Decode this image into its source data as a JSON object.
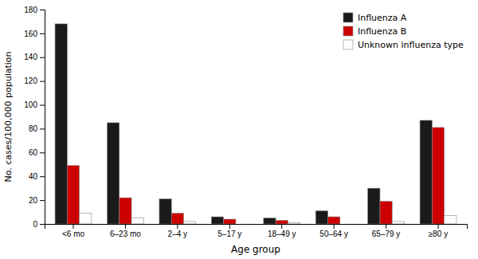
{
  "chart_data": {
    "type": "bar",
    "categories": [
      "<6 mo",
      "6–23 mo",
      "2–4 y",
      "5–17 y",
      "18–49 y",
      "50–64 y",
      "65–79 y",
      "≥80 y"
    ],
    "series": [
      {
        "name": "Influenza A",
        "color": "#1a1a1a",
        "values": [
          168,
          85,
          21,
          6,
          5,
          11,
          30,
          87
        ]
      },
      {
        "name": "Influenza B",
        "color": "#cc0000",
        "values": [
          49,
          22,
          9,
          4,
          3,
          6,
          19,
          81
        ]
      },
      {
        "name": "Unknown influenza type",
        "color": "#ffffff",
        "values": [
          9,
          5,
          2,
          0,
          1,
          0,
          2,
          7
        ]
      }
    ],
    "xlabel": "Age group",
    "ylabel": "No. cases/100,000 population",
    "ylim": [
      0,
      180
    ],
    "yticks": [
      0,
      20,
      40,
      60,
      80,
      100,
      120,
      140,
      160,
      180
    ],
    "grid": false,
    "legend": "upper right"
  }
}
